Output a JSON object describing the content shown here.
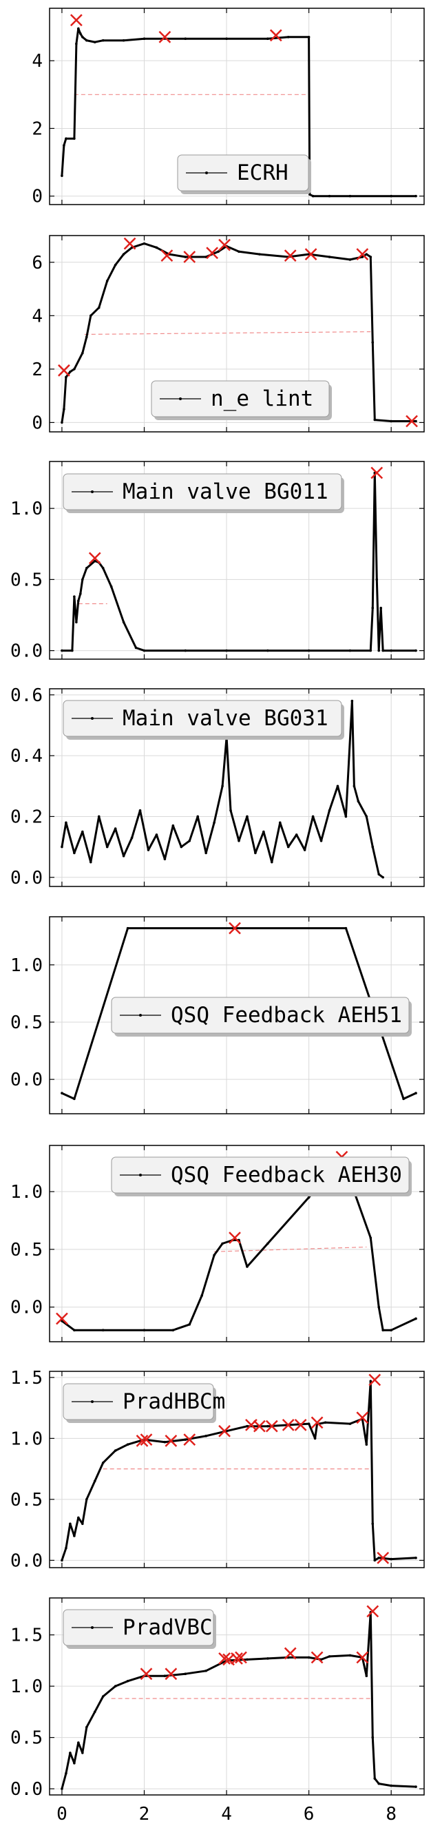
{
  "chart_data": [
    {
      "type": "line",
      "series": [
        {
          "name": "ECRH",
          "x": [
            0.0,
            0.05,
            0.1,
            0.3,
            0.35,
            0.4,
            0.45,
            0.5,
            0.6,
            0.8,
            1.0,
            1.5,
            2.0,
            3.0,
            4.0,
            5.0,
            5.5,
            6.0,
            6.02,
            6.1,
            6.5,
            7.0,
            8.0,
            8.6
          ],
          "y": [
            0.6,
            1.5,
            1.7,
            1.7,
            4.5,
            4.95,
            4.8,
            4.7,
            4.6,
            4.55,
            4.6,
            4.6,
            4.65,
            4.65,
            4.65,
            4.65,
            4.7,
            4.7,
            0.05,
            0.0,
            0.0,
            0.0,
            0.0,
            0.0
          ]
        }
      ],
      "markers": {
        "x": [
          0.35,
          2.5,
          5.2
        ],
        "y": [
          5.2,
          4.7,
          4.75
        ]
      },
      "reference_line": {
        "x": [
          0.3,
          6.0
        ],
        "y": [
          3.0,
          3.0
        ]
      },
      "xlim": [
        -0.3,
        8.8
      ],
      "ylim": [
        -0.25,
        5.55
      ],
      "yticks": [
        "0",
        "2",
        "4"
      ],
      "legend": {
        "label": "ECRH",
        "position": "lower-right"
      }
    },
    {
      "type": "line",
      "series": [
        {
          "name": "n_e lint",
          "x": [
            0.0,
            0.05,
            0.1,
            0.2,
            0.3,
            0.5,
            0.6,
            0.7,
            0.9,
            1.1,
            1.3,
            1.5,
            1.7,
            2.0,
            2.3,
            2.6,
            3.0,
            3.5,
            3.8,
            4.0,
            4.3,
            4.8,
            5.5,
            6.0,
            6.5,
            7.0,
            7.3,
            7.4,
            7.5,
            7.55,
            7.6,
            8.0,
            8.6
          ],
          "y": [
            0.0,
            0.5,
            1.7,
            1.9,
            2.0,
            2.6,
            3.2,
            4.0,
            4.3,
            5.3,
            5.9,
            6.3,
            6.55,
            6.7,
            6.55,
            6.3,
            6.2,
            6.2,
            6.4,
            6.6,
            6.4,
            6.3,
            6.2,
            6.3,
            6.2,
            6.1,
            6.2,
            6.3,
            6.2,
            3.0,
            0.1,
            0.05,
            0.05
          ]
        }
      ],
      "markers": {
        "x": [
          0.05,
          1.65,
          2.55,
          3.1,
          3.65,
          3.95,
          5.55,
          6.05,
          7.3,
          8.5
        ],
        "y": [
          1.95,
          6.7,
          6.25,
          6.2,
          6.35,
          6.65,
          6.25,
          6.3,
          6.3,
          0.05
        ]
      },
      "reference_line": {
        "x": [
          0.55,
          7.5
        ],
        "y": [
          3.3,
          3.4
        ]
      },
      "xlim": [
        -0.3,
        8.8
      ],
      "ylim": [
        -0.35,
        7.0
      ],
      "yticks": [
        "0",
        "2",
        "4",
        "6"
      ],
      "legend": {
        "label": "n_e lint",
        "position": "lower-right"
      }
    },
    {
      "type": "line",
      "series": [
        {
          "name": "Main valve BG011",
          "x": [
            0.0,
            0.25,
            0.3,
            0.35,
            0.4,
            0.45,
            0.5,
            0.6,
            0.8,
            0.9,
            1.0,
            1.2,
            1.5,
            1.8,
            2.0,
            3.0,
            4.0,
            5.0,
            6.0,
            7.0,
            7.5,
            7.55,
            7.6,
            7.65,
            7.7,
            7.75,
            7.8,
            8.0,
            8.6
          ],
          "y": [
            0.0,
            0.0,
            0.38,
            0.2,
            0.35,
            0.4,
            0.5,
            0.58,
            0.63,
            0.62,
            0.58,
            0.45,
            0.2,
            0.02,
            0.0,
            0.0,
            0.0,
            0.0,
            0.0,
            0.0,
            0.0,
            0.3,
            1.25,
            0.5,
            0.0,
            0.3,
            0.0,
            0.0,
            0.0
          ]
        }
      ],
      "markers": {
        "x": [
          0.8,
          7.65
        ],
        "y": [
          0.65,
          1.25
        ]
      },
      "reference_line": {
        "x": [
          0.4,
          1.1
        ],
        "y": [
          0.33,
          0.33
        ]
      },
      "xlim": [
        -0.3,
        8.8
      ],
      "ylim": [
        -0.06,
        1.33
      ],
      "yticks": [
        "0.0",
        "0.5",
        "1.0"
      ],
      "legend": {
        "label": "Main valve BG011",
        "position": "top-left"
      }
    },
    {
      "type": "line",
      "series": [
        {
          "name": "Main valve BG031",
          "x": [
            0.0,
            0.1,
            0.3,
            0.5,
            0.7,
            0.9,
            1.1,
            1.3,
            1.5,
            1.7,
            1.9,
            2.1,
            2.3,
            2.5,
            2.7,
            2.9,
            3.1,
            3.3,
            3.5,
            3.7,
            3.9,
            4.0,
            4.1,
            4.3,
            4.5,
            4.7,
            4.9,
            5.1,
            5.3,
            5.5,
            5.7,
            5.9,
            6.1,
            6.3,
            6.5,
            6.7,
            6.9,
            7.05,
            7.1,
            7.2,
            7.4,
            7.55,
            7.7,
            7.8
          ],
          "y": [
            0.1,
            0.18,
            0.08,
            0.15,
            0.05,
            0.2,
            0.1,
            0.16,
            0.07,
            0.13,
            0.22,
            0.09,
            0.14,
            0.06,
            0.17,
            0.1,
            0.12,
            0.2,
            0.08,
            0.18,
            0.3,
            0.46,
            0.22,
            0.12,
            0.2,
            0.08,
            0.15,
            0.05,
            0.18,
            0.1,
            0.14,
            0.09,
            0.2,
            0.12,
            0.22,
            0.3,
            0.2,
            0.58,
            0.3,
            0.25,
            0.2,
            0.1,
            0.01,
            0.0
          ]
        }
      ],
      "markers": {
        "x": [],
        "y": []
      },
      "reference_line": {
        "x": [
          3.1,
          3.35
        ],
        "y": [
          0.47,
          0.46
        ]
      },
      "xlim": [
        -0.3,
        8.8
      ],
      "ylim": [
        -0.03,
        0.62
      ],
      "yticks": [
        "0.0",
        "0.2",
        "0.4",
        "0.6"
      ],
      "legend": {
        "label": "Main valve BG031",
        "position": "top-left"
      }
    },
    {
      "type": "line",
      "series": [
        {
          "name": "QSQ Feedback AEH51",
          "x": [
            0.0,
            0.3,
            1.6,
            6.9,
            8.3,
            8.6
          ],
          "y": [
            -0.12,
            -0.17,
            1.32,
            1.32,
            -0.17,
            -0.12
          ]
        }
      ],
      "markers": {
        "x": [
          4.2
        ],
        "y": [
          1.32
        ]
      },
      "reference_line": null,
      "xlim": [
        -0.3,
        8.8
      ],
      "ylim": [
        -0.3,
        1.42
      ],
      "yticks": [
        "0.0",
        "0.5",
        "1.0"
      ],
      "legend": {
        "label": "QSQ Feedback AEH51",
        "position": "center-right"
      }
    },
    {
      "type": "line",
      "series": [
        {
          "name": "QSQ Feedback AEH30",
          "x": [
            0.0,
            0.3,
            1.0,
            2.0,
            2.7,
            3.1,
            3.4,
            3.7,
            3.9,
            4.15,
            4.3,
            4.5,
            5.0,
            6.0,
            6.8,
            7.5,
            7.7,
            7.8,
            8.0,
            8.6
          ],
          "y": [
            -0.12,
            -0.2,
            -0.2,
            -0.2,
            -0.2,
            -0.15,
            0.1,
            0.45,
            0.55,
            0.58,
            0.58,
            0.35,
            0.55,
            0.95,
            1.3,
            0.6,
            0.0,
            -0.2,
            -0.2,
            -0.1
          ]
        }
      ],
      "markers": {
        "x": [
          0.0,
          4.2,
          6.8
        ],
        "y": [
          -0.1,
          0.6,
          1.3
        ]
      },
      "reference_line": {
        "x": [
          3.7,
          7.4
        ],
        "y": [
          0.48,
          0.52
        ]
      },
      "xlim": [
        -0.3,
        8.8
      ],
      "ylim": [
        -0.3,
        1.4
      ],
      "yticks": [
        "0.0",
        "0.5",
        "1.0"
      ],
      "legend": {
        "label": "QSQ Feedback AEH30",
        "position": "top-right"
      }
    },
    {
      "type": "line",
      "series": [
        {
          "name": "PradHBCm",
          "x": [
            0.0,
            0.1,
            0.2,
            0.3,
            0.4,
            0.5,
            0.6,
            0.8,
            1.0,
            1.3,
            1.6,
            2.0,
            2.5,
            3.0,
            3.5,
            4.0,
            4.5,
            5.0,
            5.5,
            6.0,
            6.15,
            6.2,
            6.25,
            6.4,
            7.0,
            7.3,
            7.4,
            7.5,
            7.55,
            7.6,
            7.7,
            8.0,
            8.6
          ],
          "y": [
            0.0,
            0.1,
            0.3,
            0.2,
            0.35,
            0.3,
            0.5,
            0.65,
            0.8,
            0.9,
            0.95,
            0.99,
            0.97,
            0.99,
            1.02,
            1.06,
            1.1,
            1.1,
            1.11,
            1.12,
            1.0,
            1.12,
            1.12,
            1.13,
            1.12,
            1.16,
            0.95,
            1.47,
            0.3,
            0.0,
            0.02,
            0.01,
            0.02
          ]
        }
      ],
      "markers": {
        "x": [
          1.95,
          2.05,
          2.65,
          3.1,
          3.95,
          4.6,
          4.8,
          5.1,
          5.5,
          5.8,
          6.2,
          7.3,
          7.6,
          7.8
        ],
        "y": [
          0.98,
          0.99,
          0.98,
          0.99,
          1.06,
          1.11,
          1.1,
          1.1,
          1.11,
          1.11,
          1.13,
          1.17,
          1.48,
          0.02
        ]
      },
      "reference_line": {
        "x": [
          1.0,
          7.5
        ],
        "y": [
          0.75,
          0.75
        ]
      },
      "xlim": [
        -0.3,
        8.8
      ],
      "ylim": [
        -0.06,
        1.55
      ],
      "yticks": [
        "0.0",
        "0.5",
        "1.0",
        "1.5"
      ],
      "legend": {
        "label": "PradHBCm",
        "position": "top-left"
      }
    },
    {
      "type": "line",
      "series": [
        {
          "name": "PradVBC",
          "x": [
            0.0,
            0.1,
            0.2,
            0.3,
            0.4,
            0.5,
            0.6,
            0.8,
            1.0,
            1.3,
            1.6,
            2.0,
            2.5,
            3.0,
            3.5,
            4.0,
            4.5,
            5.0,
            5.5,
            6.0,
            6.3,
            6.5,
            7.0,
            7.3,
            7.4,
            7.5,
            7.55,
            7.6,
            7.7,
            8.0,
            8.6
          ],
          "y": [
            0.0,
            0.15,
            0.35,
            0.25,
            0.45,
            0.35,
            0.6,
            0.75,
            0.9,
            1.0,
            1.05,
            1.1,
            1.1,
            1.12,
            1.15,
            1.25,
            1.26,
            1.27,
            1.28,
            1.28,
            1.26,
            1.29,
            1.3,
            1.28,
            1.1,
            1.72,
            0.5,
            0.1,
            0.05,
            0.03,
            0.02
          ]
        }
      ],
      "markers": {
        "x": [
          2.05,
          2.65,
          3.95,
          4.05,
          4.25,
          4.35,
          5.55,
          6.2,
          7.3,
          7.55
        ],
        "y": [
          1.12,
          1.12,
          1.27,
          1.26,
          1.27,
          1.28,
          1.32,
          1.28,
          1.28,
          1.73
        ]
      },
      "reference_line": {
        "x": [
          1.2,
          7.5
        ],
        "y": [
          0.88,
          0.88
        ]
      },
      "xlim": [
        -0.3,
        8.8
      ],
      "ylim": [
        -0.06,
        1.86
      ],
      "yticks": [
        "0.0",
        "0.5",
        "1.0",
        "1.5"
      ],
      "legend": {
        "label": "PradVBC",
        "position": "top-left"
      }
    }
  ],
  "shared_x": {
    "ticks": [
      0,
      2,
      4,
      6,
      8
    ],
    "tick_labels": [
      "0",
      "2",
      "4",
      "6",
      "8"
    ]
  },
  "colors": {
    "series": "#000000",
    "marker": "#e0201b",
    "reference": "#f08a8a",
    "grid": "#d9d9d9"
  }
}
